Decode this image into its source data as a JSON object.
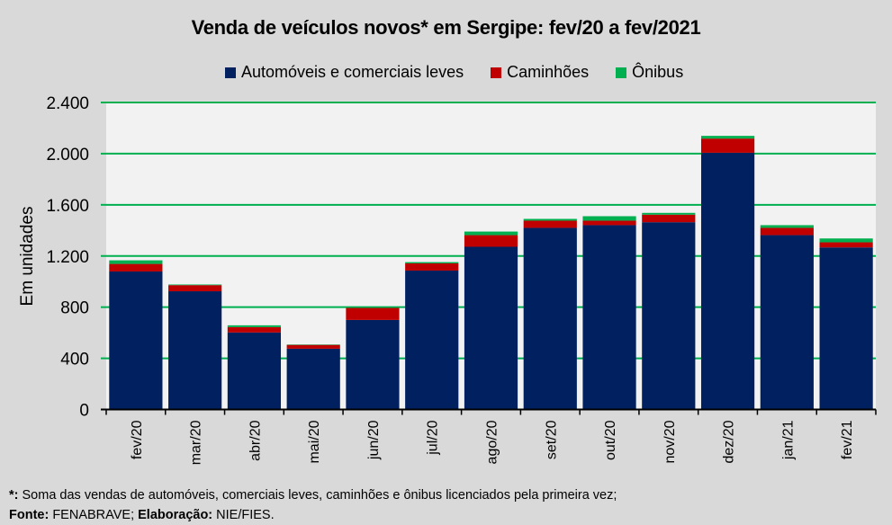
{
  "chart_data": {
    "type": "bar",
    "stacked": true,
    "title": "Venda de veículos novos* em Sergipe: fev/20 a fev/2021",
    "xlabel": "",
    "ylabel": "Em unidades",
    "ylim": [
      0,
      2400
    ],
    "yticks": [
      0,
      400,
      800,
      1200,
      1600,
      2000,
      2400
    ],
    "ytick_labels": [
      "0",
      "400",
      "800",
      "1.200",
      "1.600",
      "2.000",
      "2.400"
    ],
    "grid": true,
    "legend_position": "top-center",
    "categories": [
      "fev/20",
      "mar/20",
      "abr/20",
      "mai/20",
      "jun/20",
      "jul/20",
      "ago/20",
      "set/20",
      "out/20",
      "nov/20",
      "dez/20",
      "jan/21",
      "fev/21"
    ],
    "series": [
      {
        "name": "Automóveis e comerciais leves",
        "color": "#002060",
        "values": [
          1079,
          924,
          602,
          475,
          700,
          1086,
          1272,
          1420,
          1441,
          1464,
          2007,
          1363,
          1267
        ]
      },
      {
        "name": "Caminhões",
        "color": "#c00000",
        "values": [
          59,
          48,
          42,
          30,
          94,
          56,
          91,
          56,
          35,
          59,
          111,
          57,
          40
        ]
      },
      {
        "name": "Ônibus",
        "color": "#00b050",
        "values": [
          28,
          5,
          14,
          3,
          3,
          10,
          28,
          14,
          35,
          14,
          21,
          21,
          30
        ]
      }
    ]
  },
  "colors": {
    "background": "#d9d9d9",
    "plot_background": "#f2f2f2",
    "gridline": "#00b050"
  },
  "footer": {
    "note_marker": "*:",
    "note_text": " Soma das vendas de automóveis, comerciais leves, caminhões e ônibus licenciados pela primeira vez;",
    "source_label": "Fonte:",
    "source_text": " FENABRAVE; ",
    "elab_label": "Elaboração:",
    "elab_text": " NIE/FIES."
  }
}
